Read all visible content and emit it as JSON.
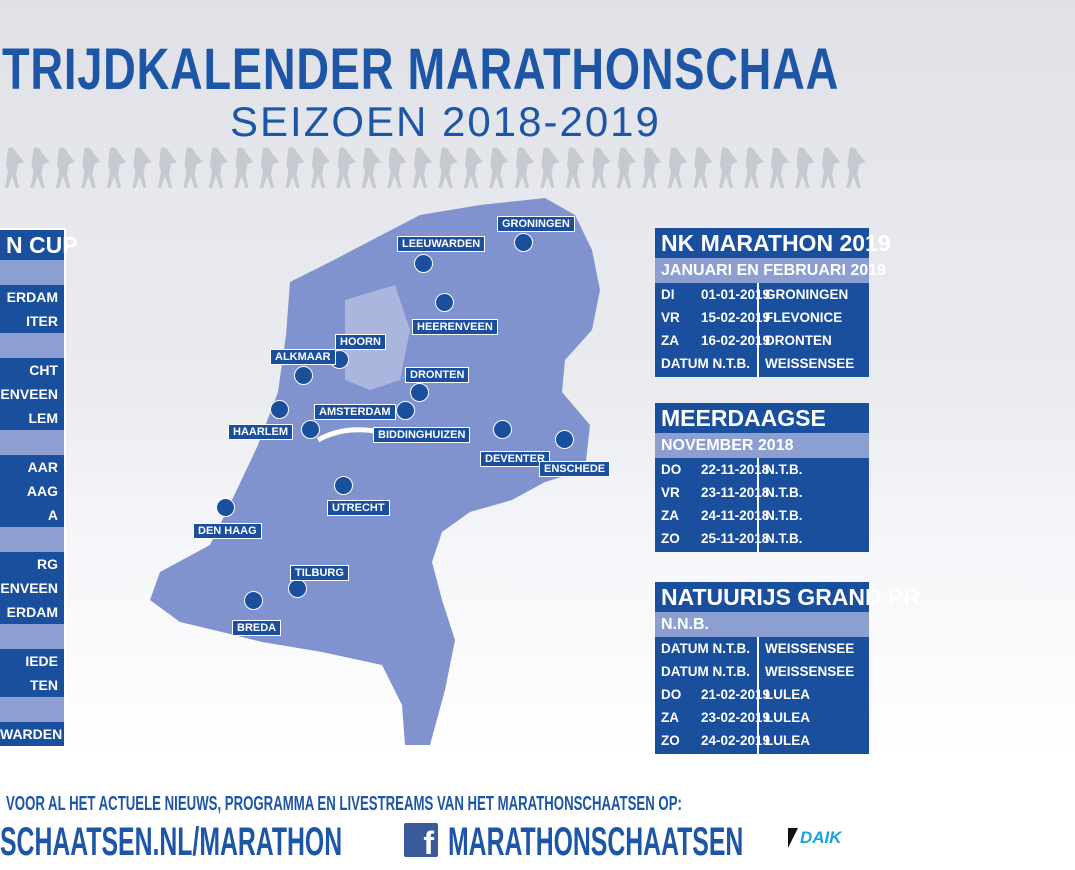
{
  "header": {
    "title": "TRIJDKALENDER MARATHONSCHAA",
    "subtitle": "SEIZOEN 2018-2019"
  },
  "colors": {
    "dark": "#1a4f9e",
    "light": "#8d9fd1",
    "map": "#8093cf",
    "title": "#1d56a6"
  },
  "cities": [
    {
      "name": "GRONINGEN",
      "above": true
    },
    {
      "name": "LEEUWARDEN",
      "above": true
    },
    {
      "name": "HEERENVEEN"
    },
    {
      "name": "HOORN",
      "above": true
    },
    {
      "name": "ALKMAAR",
      "above": true
    },
    {
      "name": "DRONTEN",
      "above": true
    },
    {
      "name": "AMSTERDAM",
      "above": true
    },
    {
      "name": "HAARLEM"
    },
    {
      "name": "BIDDINGHUIZEN"
    },
    {
      "name": "DEVENTER"
    },
    {
      "name": "ENSCHEDE"
    },
    {
      "name": "UTRECHT"
    },
    {
      "name": "DEN HAAG"
    },
    {
      "name": "TILBURG",
      "above": true
    },
    {
      "name": "BREDA"
    }
  ],
  "left_panel": {
    "title": "N CUP",
    "groups": [
      [
        "ERDAM",
        "ITER"
      ],
      [
        "CHT",
        "ENVEEN",
        "LEM"
      ],
      [
        "AAR",
        "AAG",
        "A"
      ],
      [
        "RG",
        "ENVEEN",
        "ERDAM"
      ],
      [
        "IEDE",
        "TEN"
      ],
      [
        "WARDEN"
      ]
    ]
  },
  "panels": [
    {
      "title": "NK MARATHON 2019",
      "subtitle": "JANUARI EN FEBRUARI 2019",
      "rows": [
        [
          "DI",
          "01-01-2019",
          "GRONINGEN"
        ],
        [
          "VR",
          "15-02-2019",
          "FLEVONICE"
        ],
        [
          "ZA",
          "16-02-2019",
          "DRONTEN"
        ],
        [
          "DATUM N.T.B.",
          "",
          "WEISSENSEE"
        ]
      ]
    },
    {
      "title": "MEERDAAGSE",
      "subtitle": "NOVEMBER 2018",
      "rows": [
        [
          "DO",
          "22-11-2018",
          "N.T.B."
        ],
        [
          "VR",
          "23-11-2018",
          "N.T.B."
        ],
        [
          "ZA",
          "24-11-2018",
          "N.T.B."
        ],
        [
          "ZO",
          "25-11-2018",
          "N.T.B."
        ]
      ]
    },
    {
      "title": "NATUURIJS GRAND PR",
      "subtitle": "N.N.B.",
      "rows": [
        [
          "DATUM N.T.B.",
          "",
          "WEISSENSEE"
        ],
        [
          "DATUM N.T.B.",
          "",
          "WEISSENSEE"
        ],
        [
          "DO",
          "21-02-2019",
          "LULEA"
        ],
        [
          "ZA",
          "23-02-2019",
          "LULEA"
        ],
        [
          "ZO",
          "24-02-2019",
          "LULEA"
        ]
      ]
    }
  ],
  "footer": {
    "line1": "VOOR AL HET ACTUELE NIEUWS, PROGRAMMA EN LIVESTREAMS VAN HET MARATHONSCHAATSEN OP:",
    "website": "SCHAATSEN.NL/MARATHON",
    "facebook_icon": "f",
    "facebook": "MARATHONSCHAATSEN",
    "sponsor": "DAIK"
  }
}
